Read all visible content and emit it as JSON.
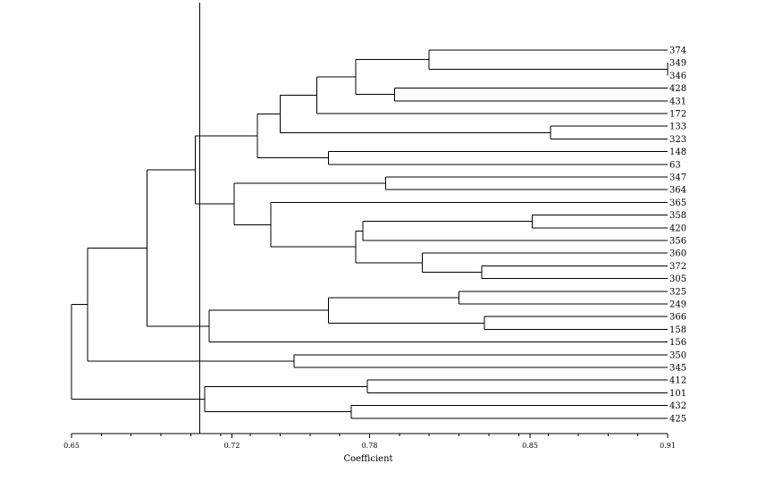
{
  "chart_data": {
    "type": "dendrogram",
    "xlabel": "Coefficient",
    "xlim": [
      0.65,
      0.91
    ],
    "x_tick_labels": [
      "0.65",
      "0.72",
      "0.78",
      "0.85",
      "0.91"
    ],
    "x_tick_values": [
      0.65,
      0.72,
      0.78,
      0.85,
      0.91
    ],
    "cutoff": 0.706,
    "leaves": [
      "374",
      "349",
      "346",
      "428",
      "431",
      "172",
      "133",
      "323",
      "148",
      "63",
      "347",
      "364",
      "365",
      "358",
      "420",
      "356",
      "360",
      "372",
      "305",
      "325",
      "249",
      "366",
      "158",
      "156",
      "350",
      "345",
      "412",
      "101",
      "432",
      "425"
    ],
    "merges": [
      {
        "id": "c1",
        "children": [
          "349",
          "346"
        ],
        "height": 0.91
      },
      {
        "id": "c2",
        "children": [
          "374",
          "c1"
        ],
        "height": 0.806
      },
      {
        "id": "c3",
        "children": [
          "428",
          "431"
        ],
        "height": 0.791
      },
      {
        "id": "c4",
        "children": [
          "c2",
          "c3"
        ],
        "height": 0.774
      },
      {
        "id": "c5",
        "children": [
          "c4",
          "172"
        ],
        "height": 0.757
      },
      {
        "id": "c6",
        "children": [
          "133",
          "323"
        ],
        "height": 0.859
      },
      {
        "id": "c7",
        "children": [
          "c5",
          "c6"
        ],
        "height": 0.741
      },
      {
        "id": "c8",
        "children": [
          "148",
          "63"
        ],
        "height": 0.762
      },
      {
        "id": "c9",
        "children": [
          "c7",
          "c8"
        ],
        "height": 0.731
      },
      {
        "id": "c10",
        "children": [
          "347",
          "364"
        ],
        "height": 0.787
      },
      {
        "id": "c11",
        "children": [
          "358",
          "420"
        ],
        "height": 0.851
      },
      {
        "id": "c12",
        "children": [
          "c11",
          "356"
        ],
        "height": 0.777
      },
      {
        "id": "c13",
        "children": [
          "372",
          "305"
        ],
        "height": 0.829
      },
      {
        "id": "c14",
        "children": [
          "360",
          "c13"
        ],
        "height": 0.803
      },
      {
        "id": "c15",
        "children": [
          "c12",
          "c14"
        ],
        "height": 0.774
      },
      {
        "id": "c16",
        "children": [
          "365",
          "c15"
        ],
        "height": 0.737
      },
      {
        "id": "c17",
        "children": [
          "c10",
          "c16"
        ],
        "height": 0.721
      },
      {
        "id": "c18",
        "children": [
          "c9",
          "c17"
        ],
        "height": 0.704
      },
      {
        "id": "c19",
        "children": [
          "325",
          "249"
        ],
        "height": 0.819
      },
      {
        "id": "c20",
        "children": [
          "366",
          "158"
        ],
        "height": 0.83
      },
      {
        "id": "c21",
        "children": [
          "c19",
          "c20"
        ],
        "height": 0.762
      },
      {
        "id": "c22",
        "children": [
          "c21",
          "156"
        ],
        "height": 0.71
      },
      {
        "id": "c23",
        "children": [
          "c18",
          "c22"
        ],
        "height": 0.683
      },
      {
        "id": "c24",
        "children": [
          "350",
          "345"
        ],
        "height": 0.747
      },
      {
        "id": "c25",
        "children": [
          "c23",
          "c24"
        ],
        "height": 0.657
      },
      {
        "id": "c26",
        "children": [
          "412",
          "101"
        ],
        "height": 0.779
      },
      {
        "id": "c27",
        "children": [
          "432",
          "425"
        ],
        "height": 0.772
      },
      {
        "id": "c28",
        "children": [
          "c26",
          "c27"
        ],
        "height": 0.708
      },
      {
        "id": "c29",
        "children": [
          "c25",
          "c28"
        ],
        "height": 0.65
      }
    ]
  }
}
